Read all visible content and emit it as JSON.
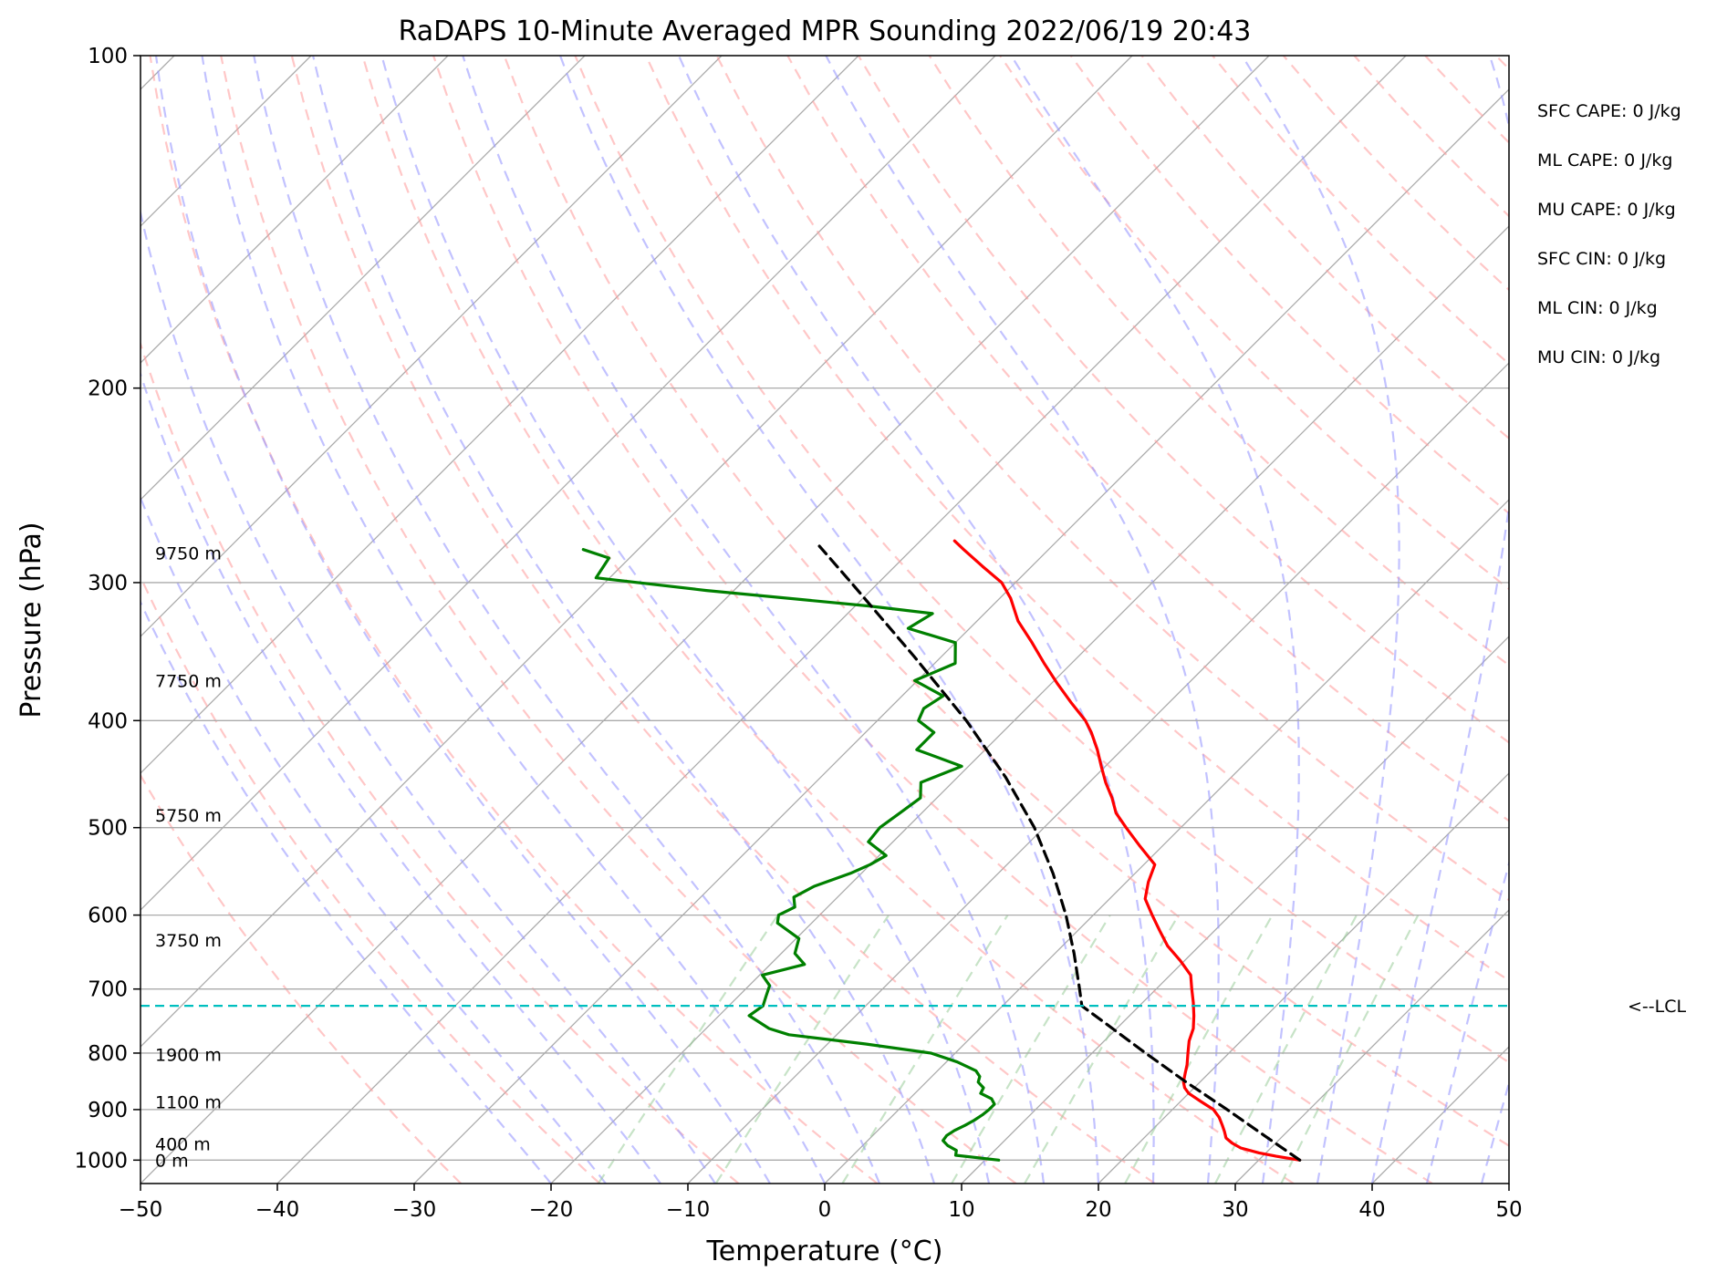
{
  "chart_data": {
    "type": "line",
    "title": "RaDAPS 10-Minute Averaged MPR Sounding 2022/06/19 20:43",
    "xlabel": "Temperature (°C)",
    "ylabel": "Pressure (hPa)",
    "xlim": [
      -50,
      50
    ],
    "ylim": [
      1050,
      100
    ],
    "y_scale": "log",
    "skew": true,
    "grid": true,
    "xticks": [
      -50,
      -40,
      -30,
      -20,
      -10,
      0,
      10,
      20,
      30,
      40,
      50
    ],
    "xtick_labels": [
      "−50",
      "−40",
      "−30",
      "−20",
      "−10",
      "0",
      "10",
      "20",
      "30",
      "40",
      "50"
    ],
    "yticks": [
      100,
      200,
      300,
      400,
      500,
      600,
      700,
      800,
      900,
      1000
    ],
    "ytick_labels": [
      "100",
      "200",
      "300",
      "400",
      "500",
      "600",
      "700",
      "800",
      "900",
      "1000"
    ],
    "series": [
      {
        "key": "temperature",
        "color": "#ff0000",
        "points": [
          [
            1000,
            33.0
          ],
          [
            992,
            31.0
          ],
          [
            985,
            29.5
          ],
          [
            975,
            27.8
          ],
          [
            965,
            26.8
          ],
          [
            955,
            26.0
          ],
          [
            942,
            25.4
          ],
          [
            930,
            24.8
          ],
          [
            915,
            24.0
          ],
          [
            900,
            23.0
          ],
          [
            885,
            21.5
          ],
          [
            870,
            20.0
          ],
          [
            860,
            19.3
          ],
          [
            850,
            18.8
          ],
          [
            835,
            18.3
          ],
          [
            820,
            17.8
          ],
          [
            800,
            17.0
          ],
          [
            780,
            16.2
          ],
          [
            760,
            15.6
          ],
          [
            740,
            14.7
          ],
          [
            720,
            13.7
          ],
          [
            700,
            12.6
          ],
          [
            680,
            11.5
          ],
          [
            660,
            9.7
          ],
          [
            640,
            7.7
          ],
          [
            620,
            6.0
          ],
          [
            600,
            4.3
          ],
          [
            580,
            2.6
          ],
          [
            560,
            1.6
          ],
          [
            540,
            0.8
          ],
          [
            520,
            -1.6
          ],
          [
            500,
            -4.0
          ],
          [
            485,
            -5.8
          ],
          [
            470,
            -7.2
          ],
          [
            455,
            -8.8
          ],
          [
            440,
            -10.3
          ],
          [
            425,
            -11.8
          ],
          [
            410,
            -13.5
          ],
          [
            400,
            -14.8
          ],
          [
            385,
            -17.2
          ],
          [
            370,
            -19.6
          ],
          [
            355,
            -22.0
          ],
          [
            340,
            -24.4
          ],
          [
            325,
            -27.0
          ],
          [
            310,
            -29.2
          ],
          [
            300,
            -31.0
          ],
          [
            290,
            -33.6
          ],
          [
            280,
            -36.2
          ],
          [
            275,
            -37.5
          ]
        ]
      },
      {
        "key": "dewpoint",
        "color": "#008000",
        "points": [
          [
            1000,
            11.0
          ],
          [
            990,
            7.5
          ],
          [
            980,
            7.2
          ],
          [
            970,
            6.2
          ],
          [
            960,
            5.5
          ],
          [
            950,
            5.4
          ],
          [
            940,
            5.6
          ],
          [
            930,
            6.0
          ],
          [
            920,
            6.3
          ],
          [
            910,
            6.5
          ],
          [
            900,
            6.6
          ],
          [
            890,
            6.6
          ],
          [
            880,
            6.0
          ],
          [
            870,
            4.8
          ],
          [
            860,
            4.6
          ],
          [
            850,
            3.8
          ],
          [
            840,
            3.5
          ],
          [
            830,
            2.8
          ],
          [
            815,
            0.8
          ],
          [
            800,
            -1.8
          ],
          [
            785,
            -7.2
          ],
          [
            770,
            -13.5
          ],
          [
            760,
            -15.4
          ],
          [
            740,
            -17.8
          ],
          [
            725,
            -17.5
          ],
          [
            710,
            -18.0
          ],
          [
            695,
            -18.5
          ],
          [
            680,
            -19.8
          ],
          [
            665,
            -17.5
          ],
          [
            650,
            -19.0
          ],
          [
            630,
            -19.8
          ],
          [
            610,
            -22.5
          ],
          [
            600,
            -23.0
          ],
          [
            590,
            -22.4
          ],
          [
            578,
            -23.2
          ],
          [
            565,
            -22.5
          ],
          [
            550,
            -20.8
          ],
          [
            540,
            -20.0
          ],
          [
            530,
            -19.5
          ],
          [
            515,
            -21.8
          ],
          [
            500,
            -22.0
          ],
          [
            485,
            -21.6
          ],
          [
            470,
            -21.2
          ],
          [
            455,
            -22.3
          ],
          [
            440,
            -20.5
          ],
          [
            425,
            -25.0
          ],
          [
            410,
            -25.0
          ],
          [
            400,
            -27.0
          ],
          [
            390,
            -27.5
          ],
          [
            380,
            -27.0
          ],
          [
            368,
            -30.2
          ],
          [
            355,
            -28.5
          ],
          [
            340,
            -30.0
          ],
          [
            330,
            -34.5
          ],
          [
            320,
            -33.8
          ],
          [
            315,
            -39.0
          ],
          [
            305,
            -52.0
          ],
          [
            297,
            -61.0
          ],
          [
            285,
            -61.5
          ],
          [
            280,
            -64.0
          ]
        ]
      },
      {
        "key": "parcel",
        "color": "#000000",
        "dashed": true,
        "points": [
          [
            1000,
            33.0
          ],
          [
            950,
            28.6
          ],
          [
            900,
            24.0
          ],
          [
            850,
            19.0
          ],
          [
            800,
            13.9
          ],
          [
            750,
            8.6
          ],
          [
            725,
            5.8
          ],
          [
            700,
            4.4
          ],
          [
            650,
            1.4
          ],
          [
            600,
            -2.0
          ],
          [
            550,
            -6.0
          ],
          [
            500,
            -10.7
          ],
          [
            450,
            -16.5
          ],
          [
            400,
            -23.5
          ],
          [
            350,
            -32.0
          ],
          [
            300,
            -42.0
          ],
          [
            278,
            -47.0
          ]
        ]
      }
    ],
    "lcl_pressure": 725,
    "lcl_label": "<--LCL",
    "height_labels": [
      {
        "p": 282,
        "text": "9750 m"
      },
      {
        "p": 368,
        "text": "7750 m"
      },
      {
        "p": 487,
        "text": "5750 m"
      },
      {
        "p": 632,
        "text": "3750 m"
      },
      {
        "p": 802,
        "text": "1900 m"
      },
      {
        "p": 886,
        "text": "1100 m"
      },
      {
        "p": 967,
        "text": "400 m"
      },
      {
        "p": 1000,
        "text": "0 m"
      }
    ],
    "indices": [
      "SFC CAPE: 0 J/kg",
      "ML CAPE: 0 J/kg",
      "MU CAPE: 0 J/kg",
      "SFC CIN: 0 J/kg",
      "ML CIN: 0 J/kg",
      "MU CIN: 0 J/kg"
    ],
    "colors": {
      "isotherm": "#aaaaaa",
      "dry_adiabat": "#ff9999",
      "moist_adiabat": "#9999ff",
      "mixing_ratio": "#99cc99",
      "lcl_line": "#00bfbf"
    }
  }
}
